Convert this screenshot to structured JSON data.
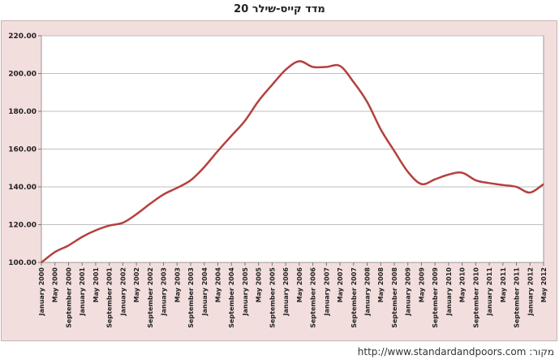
{
  "title": "מדד קייס-שילר 20",
  "source": "http://www.standardandpoors.com :מקור",
  "colors": {
    "line": "#b5403d",
    "plot_bg": "#ffffff",
    "frame_bg": "#f3dede",
    "grid": "#bfbfbf"
  },
  "chart_data": {
    "type": "line",
    "title": "מדד קייס-שילר 20",
    "xlabel": "",
    "ylabel": "",
    "ylim": [
      100,
      220
    ],
    "yticks": [
      "100.00",
      "120.00",
      "140.00",
      "160.00",
      "180.00",
      "200.00",
      "220.00"
    ],
    "grid": true,
    "legend": "none",
    "xtick_labels": [
      "January 2000",
      "May 2000",
      "September 2000",
      "January 2001",
      "May 2001",
      "September 2001",
      "January 2002",
      "May 2002",
      "September 2002",
      "January 2003",
      "May 2003",
      "September 2003",
      "January 2004",
      "May 2004",
      "September 2004",
      "January 2005",
      "May 2005",
      "September 2005",
      "January 2006",
      "May 2006",
      "September 2006",
      "January 2007",
      "May 2007",
      "September 2007",
      "January 2008",
      "May 2008",
      "September 2008",
      "January 2009",
      "May 2009",
      "September 2009",
      "January 2010",
      "May 2010",
      "September 2010",
      "January 2011",
      "May 2011",
      "September 2011",
      "January 2012",
      "May 2012"
    ],
    "series": [
      {
        "x": [
          "January 2000",
          "May 2000",
          "September 2000",
          "January 2001",
          "May 2001",
          "September 2001",
          "January 2002",
          "May 2002",
          "September 2002",
          "January 2003",
          "May 2003",
          "September 2003",
          "January 2004",
          "May 2004",
          "September 2004",
          "January 2005",
          "May 2005",
          "September 2005",
          "January 2006",
          "May 2006",
          "September 2006",
          "January 2007",
          "May 2007",
          "September 2007",
          "January 2008",
          "May 2008",
          "September 2008",
          "January 2009",
          "May 2009",
          "September 2009",
          "January 2010",
          "May 2010",
          "September 2010",
          "January 2011",
          "May 2011",
          "September 2011",
          "January 2012",
          "May 2012"
        ],
        "values": [
          100.0,
          105.5,
          109.0,
          113.5,
          117.0,
          119.5,
          121.0,
          125.5,
          131.0,
          136.0,
          139.5,
          143.5,
          150.5,
          159.0,
          167.0,
          175.0,
          185.5,
          194.0,
          202.0,
          206.5,
          203.5,
          203.5,
          204.0,
          195.5,
          185.0,
          170.5,
          159.0,
          148.0,
          141.5,
          144.0,
          146.5,
          147.5,
          143.5,
          142.0,
          141.0,
          140.0,
          137.0,
          141.5
        ]
      }
    ]
  }
}
